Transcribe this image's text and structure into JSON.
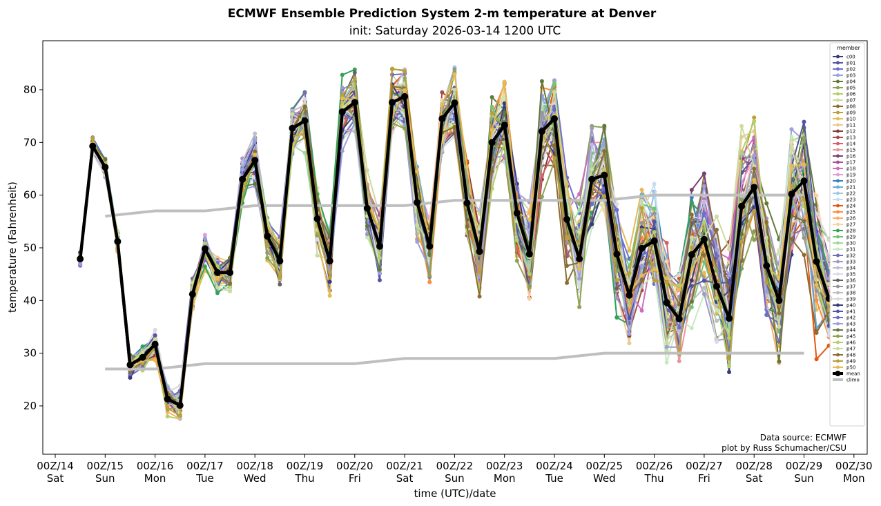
{
  "chart_data": {
    "type": "line",
    "title": "ECMWF Ensemble Prediction System 2-m temperature at Denver",
    "subtitle": "init: Saturday 2026-03-14 1200 UTC",
    "xlabel": "time (UTC)/date",
    "ylabel": "temperature (Fahrenheit)",
    "ylim": [
      11,
      89.5
    ],
    "xlim_hours_from_00Z14": [
      -4.5,
      389
    ],
    "yticks": [
      20,
      30,
      40,
      50,
      60,
      70,
      80
    ],
    "xticks": [
      {
        "hour": 0,
        "line1": "00Z/14",
        "line2": "Sat"
      },
      {
        "hour": 24,
        "line1": "00Z/15",
        "line2": "Sun"
      },
      {
        "hour": 48,
        "line1": "00Z/16",
        "line2": "Mon"
      },
      {
        "hour": 72,
        "line1": "00Z/17",
        "line2": "Tue"
      },
      {
        "hour": 96,
        "line1": "00Z/18",
        "line2": "Wed"
      },
      {
        "hour": 120,
        "line1": "00Z/19",
        "line2": "Thu"
      },
      {
        "hour": 144,
        "line1": "00Z/20",
        "line2": "Fri"
      },
      {
        "hour": 168,
        "line1": "00Z/21",
        "line2": "Sat"
      },
      {
        "hour": 192,
        "line1": "00Z/22",
        "line2": "Sun"
      },
      {
        "hour": 216,
        "line1": "00Z/23",
        "line2": "Mon"
      },
      {
        "hour": 240,
        "line1": "00Z/24",
        "line2": "Tue"
      },
      {
        "hour": 264,
        "line1": "00Z/25",
        "line2": "Wed"
      },
      {
        "hour": 288,
        "line1": "00Z/26",
        "line2": "Thu"
      },
      {
        "hour": 312,
        "line1": "00Z/27",
        "line2": "Fri"
      },
      {
        "hour": 336,
        "line1": "00Z/28",
        "line2": "Sat"
      },
      {
        "hour": 360,
        "line1": "00Z/29",
        "line2": "Sun"
      },
      {
        "hour": 384,
        "line1": "00Z/30",
        "line2": "Mon"
      }
    ],
    "time_start_hour": 12,
    "time_step_hours": 6,
    "mean": [
      47.9,
      69.3,
      65.3,
      51.2,
      27.8,
      29.2,
      31.7,
      21.3,
      20.1,
      41.2,
      49.8,
      45.3,
      45.3,
      63.0,
      66.6,
      52.2,
      47.5,
      72.7,
      74.1,
      55.5,
      47.5,
      75.8,
      77.6,
      57.5,
      50.3,
      77.6,
      78.7,
      58.6,
      50.3,
      74.5,
      77.5,
      58.5,
      49.3,
      70.0,
      73.3,
      56.6,
      48.8,
      72.1,
      74.5,
      55.4,
      47.9,
      63.0,
      63.8,
      48.8,
      41.0,
      49.9,
      51.3,
      39.6,
      36.5,
      48.7,
      51.6,
      42.7,
      36.6,
      57.9,
      61.5,
      46.6,
      40.0,
      60.2,
      62.7,
      47.4,
      40.4
    ],
    "mean_color": "#000000",
    "climo": {
      "color": "#bfbfbf",
      "max": [
        {
          "hour": 24,
          "value": 56
        },
        {
          "hour": 48,
          "value": 57
        },
        {
          "hour": 72,
          "value": 57
        },
        {
          "hour": 96,
          "value": 58
        },
        {
          "hour": 168,
          "value": 58
        },
        {
          "hour": 192,
          "value": 59
        },
        {
          "hour": 264,
          "value": 59
        },
        {
          "hour": 288,
          "value": 60
        },
        {
          "hour": 360,
          "value": 60
        }
      ],
      "min": [
        {
          "hour": 24,
          "value": 27
        },
        {
          "hour": 48,
          "value": 27
        },
        {
          "hour": 72,
          "value": 28
        },
        {
          "hour": 144,
          "value": 28
        },
        {
          "hour": 168,
          "value": 29
        },
        {
          "hour": 240,
          "value": 29
        },
        {
          "hour": 264,
          "value": 30
        },
        {
          "hour": 360,
          "value": 30
        }
      ]
    },
    "members": [
      "c00",
      "p01",
      "p02",
      "p03",
      "p04",
      "p05",
      "p06",
      "p07",
      "p08",
      "p09",
      "p10",
      "p11",
      "p12",
      "p13",
      "p14",
      "p15",
      "p16",
      "p17",
      "p18",
      "p19",
      "p20",
      "p21",
      "p22",
      "p23",
      "p24",
      "p25",
      "p26",
      "p27",
      "p28",
      "p29",
      "p30",
      "p31",
      "p32",
      "p33",
      "p34",
      "p35",
      "p36",
      "p37",
      "p38",
      "p39",
      "p40",
      "p41",
      "p42",
      "p43",
      "p44",
      "p45",
      "p46",
      "p47",
      "p48",
      "p49",
      "p50"
    ],
    "member_colors": [
      "#393b79",
      "#5254a3",
      "#6b6ecf",
      "#9c9ede",
      "#637939",
      "#8ca252",
      "#b5cf6b",
      "#cedb9c",
      "#8c6d31",
      "#bd9e39",
      "#e7ba52",
      "#e7cb94",
      "#843c39",
      "#ad494a",
      "#d6616b",
      "#e7969c",
      "#7b4173",
      "#a55194",
      "#ce6dbd",
      "#de9ed6",
      "#3182bd",
      "#6baed6",
      "#9ecae1",
      "#c6dbef",
      "#e6550d",
      "#fd8d3c",
      "#fdae6b",
      "#fdd0a2",
      "#31a354",
      "#74c476",
      "#a1d99b",
      "#c7e9c0",
      "#756bb1",
      "#9e9ac8",
      "#bcbddc",
      "#dadaeb",
      "#636363",
      "#969696",
      "#bdbdbd",
      "#d9d9d9",
      "#393b79",
      "#5254a3",
      "#6b6ecf",
      "#9c9ede",
      "#637939",
      "#8ca252",
      "#b5cf6b",
      "#cedb9c",
      "#8c6d31",
      "#bd9e39",
      "#e7ba52"
    ],
    "member_spread_note": "members spread around the mean growing with lead time",
    "legend": {
      "title": "member",
      "placement": "right",
      "extra": [
        "mean",
        "climo"
      ]
    },
    "annotation": [
      "Data source: ECMWF",
      "plot by Russ Schumacher/CSU"
    ]
  }
}
